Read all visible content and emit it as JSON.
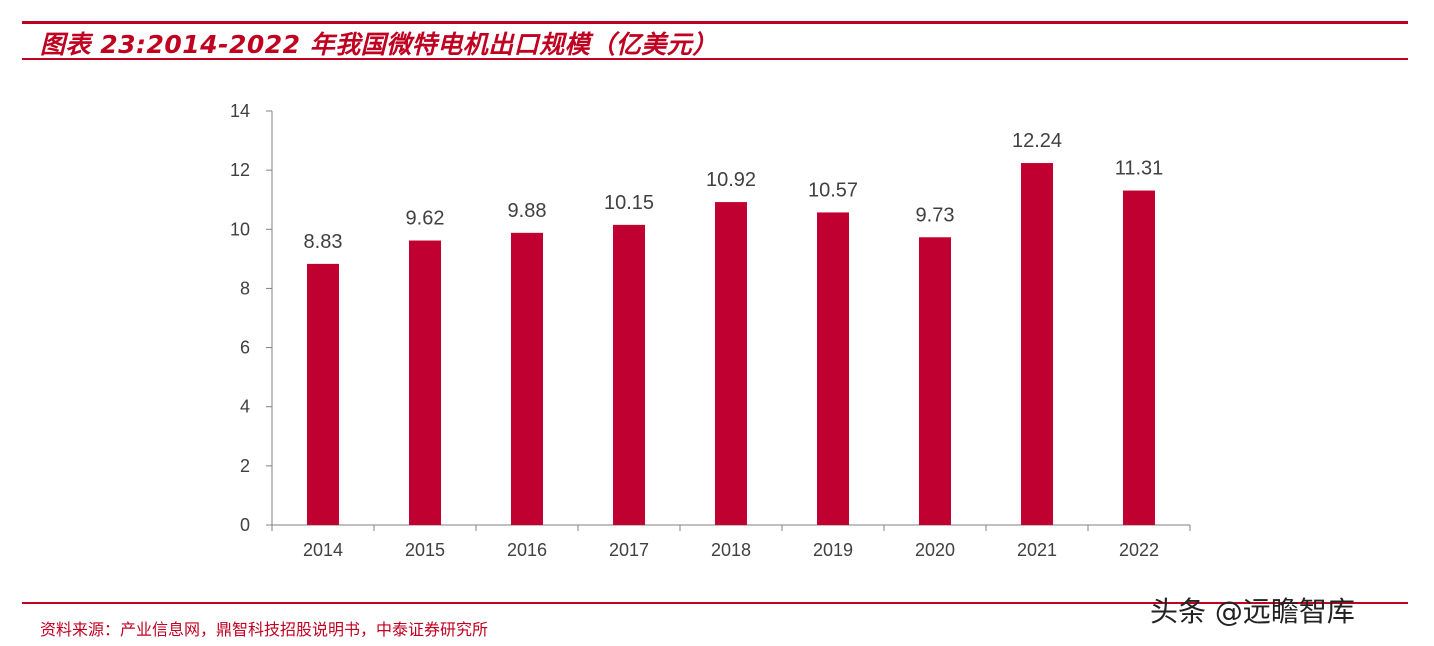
{
  "header": {
    "title": "图表 23:2014-2022 年我国微特电机出口规模（亿美元）"
  },
  "footer": {
    "source": "资料来源：产业信息网，鼎智科技招股说明书，中泰证券研究所",
    "watermark": "头条 @远瞻智库"
  },
  "colors": {
    "bar": "#c00030",
    "rule": "#c00020",
    "text": "#404040",
    "axis": "#808080"
  },
  "chart_data": {
    "type": "bar",
    "title": "",
    "xlabel": "",
    "ylabel": "",
    "categories": [
      "2014",
      "2015",
      "2016",
      "2017",
      "2018",
      "2019",
      "2020",
      "2021",
      "2022"
    ],
    "values": [
      8.83,
      9.62,
      9.88,
      10.15,
      10.92,
      10.57,
      9.73,
      12.24,
      11.31
    ],
    "data_labels": [
      "8.83",
      "9.62",
      "9.88",
      "10.15",
      "10.92",
      "10.57",
      "9.73",
      "12.24",
      "11.31"
    ],
    "ylim": [
      0,
      14
    ],
    "yticks": [
      0,
      2,
      4,
      6,
      8,
      10,
      12,
      14
    ],
    "grid": false,
    "legend": "none"
  }
}
